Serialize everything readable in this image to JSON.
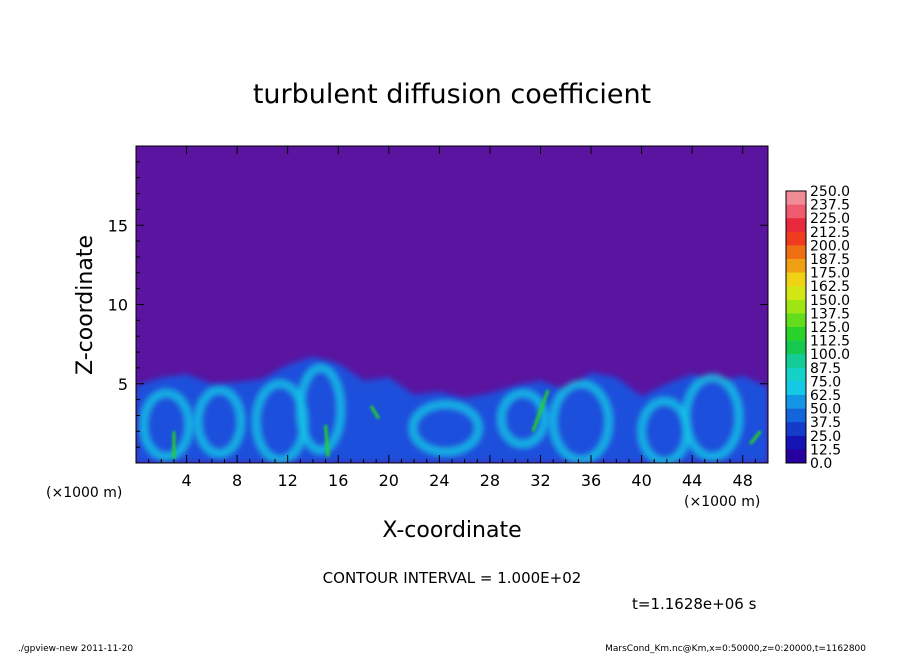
{
  "chart_data": {
    "type": "heatmap",
    "title": "turbulent diffusion coefficient",
    "xlabel": "X-coordinate",
    "ylabel": "Z-coordinate",
    "x_unit_left": "(×1000 m)",
    "x_unit_right": "(×1000 m)",
    "x_ticks": [
      "4",
      "8",
      "12",
      "16",
      "20",
      "24",
      "28",
      "32",
      "36",
      "40",
      "44",
      "48"
    ],
    "x_tick_values": [
      4,
      8,
      12,
      16,
      20,
      24,
      28,
      32,
      36,
      40,
      44,
      48
    ],
    "y_ticks": [
      "5",
      "10",
      "15"
    ],
    "y_tick_values": [
      5,
      10,
      15
    ],
    "xlim": [
      0,
      50
    ],
    "ylim": [
      0,
      20
    ],
    "colorbar": {
      "labels": [
        "250.0",
        "237.5",
        "225.0",
        "212.5",
        "200.0",
        "187.5",
        "175.0",
        "162.5",
        "150.0",
        "137.5",
        "125.0",
        "112.5",
        "100.0",
        "87.5",
        "75.0",
        "62.5",
        "50.0",
        "37.5",
        "25.0",
        "12.5",
        "0.0"
      ],
      "colors": [
        "#f08c96",
        "#f05a6e",
        "#e8283c",
        "#f03c1e",
        "#f06e14",
        "#f0a014",
        "#f0d214",
        "#d2e614",
        "#a0e614",
        "#64dc1e",
        "#28d228",
        "#14c850",
        "#14cc96",
        "#14d2c8",
        "#14c8e6",
        "#1496e6",
        "#1464dc",
        "#143cc8",
        "#1414b4",
        "#2800a0"
      ],
      "range": [
        0,
        250
      ],
      "step": 12.5
    },
    "annotations": {
      "contour_interval": "CONTOUR INTERVAL = 1.000E+02",
      "time": "t=1.1628e+06 s"
    }
  },
  "footer": {
    "left": "./gpview-new   2011-11-20",
    "right": "MarsCond_Km.nc@Km,x=0:50000,z=0:20000,t=1162800"
  },
  "colors": {
    "background_field": "#5a14a0",
    "low_band": "#1e50dc",
    "mid_band": "#14c8e6"
  }
}
